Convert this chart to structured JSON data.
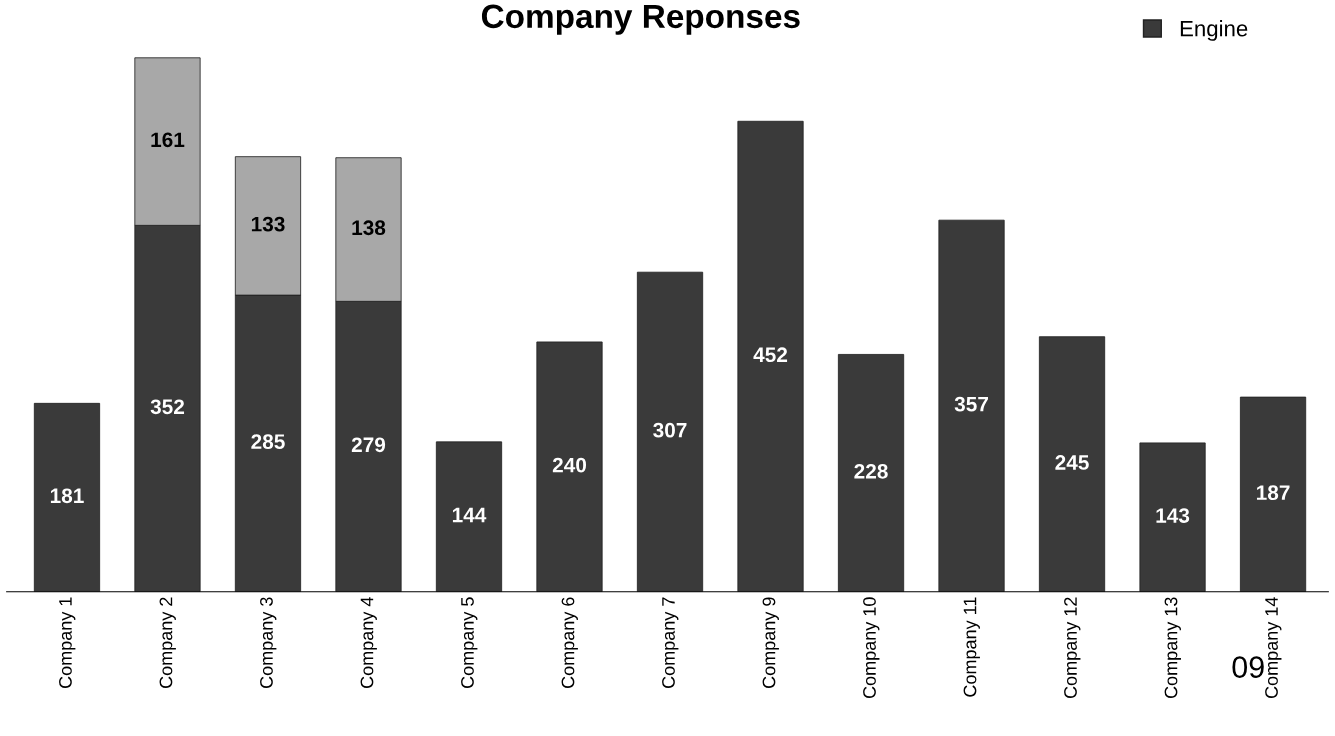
{
  "chart_data": {
    "type": "bar",
    "title": "Company Reponses",
    "stacked": true,
    "data_labels": true,
    "legend": "top right",
    "categories": [
      "Company 1",
      "Company 2",
      "Company 3",
      "Company 4",
      "Company 5",
      "Company 6",
      "Company 7",
      "Company 9",
      "Company 10",
      "Company 11",
      "Company 12",
      "Company 13",
      "Company 14"
    ],
    "series": [
      {
        "name": "Engine",
        "color": "#3a3a3a",
        "values": [
          181,
          352,
          285,
          279,
          144,
          240,
          307,
          452,
          228,
          357,
          245,
          143,
          187
        ]
      },
      {
        "color": "#a8a8a8",
        "values": [
          null,
          161,
          133,
          138,
          null,
          null,
          null,
          null,
          null,
          null,
          null,
          null,
          null
        ]
      }
    ],
    "annotations": [
      "09"
    ]
  }
}
